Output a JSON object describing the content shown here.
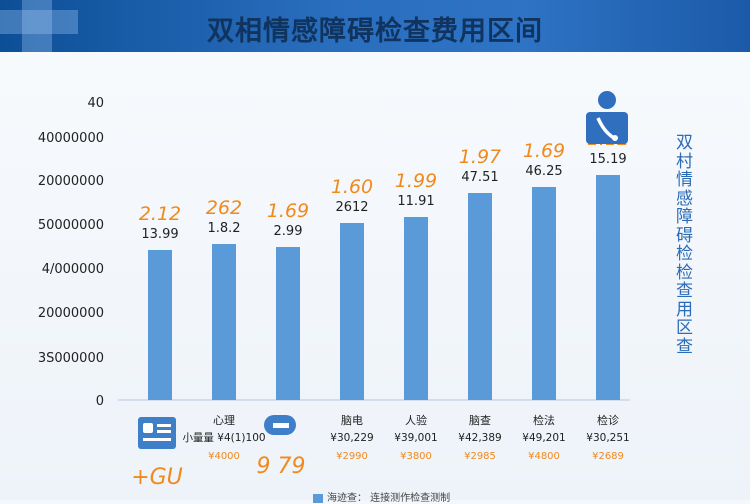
{
  "title": "双相情感障碍检查费用区间",
  "side_label": "双村情感障碍检检查用区查",
  "legend_label": "海迹查： 连接测作检查测制",
  "colors": {
    "bar": "#5b9ad9",
    "orange": "#f08a1c",
    "header": "#1b5aa8",
    "title": "#10345f"
  },
  "icons": {
    "person": "person-icon",
    "document": "document-icon",
    "bandage": "bandage-icon"
  },
  "chart_data": {
    "type": "bar",
    "y_tick_labels": [
      "40",
      "40000000",
      "20000000",
      "50000000",
      "4/000000",
      "20000000",
      "3S000000",
      "0"
    ],
    "ylim": [
      0,
      100
    ],
    "grid": false,
    "values": [
      50,
      52,
      51,
      59,
      61,
      69,
      71,
      75
    ],
    "value_labels": [
      "13.99",
      "1.8.2",
      "2.99",
      "2612",
      "11.91",
      "47.51",
      "46.25",
      "15.19"
    ],
    "orange_labels": [
      "2.12",
      "262",
      "1.69",
      "1.60",
      "1.99",
      "1.97",
      "1.69",
      "1.12"
    ],
    "categories_line1": [
      "",
      "心理",
      "",
      "脑电",
      "人验",
      "脑查",
      "检法",
      "检诊"
    ],
    "categories_line2": [
      "",
      "小量量 ¥4(1)100",
      "",
      "¥30,229",
      "¥39,001",
      "¥42,389",
      "¥49,201",
      "¥30,251"
    ],
    "categories_line3": [
      "",
      "¥4000",
      "",
      "¥2990",
      "¥3800",
      "¥2985",
      "¥4800",
      "¥2689"
    ],
    "extra_orange": [
      "+GU",
      "9 79"
    ]
  }
}
